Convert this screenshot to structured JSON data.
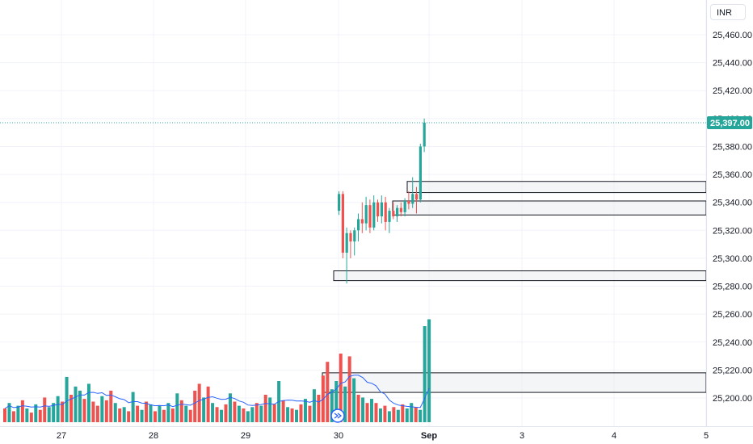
{
  "currency": "INR",
  "chart_data": {
    "type": "candlestick",
    "y_range": [
      25180,
      25470
    ],
    "y_ticks": [
      "25,460.00",
      "25,440.00",
      "25,420.00",
      "25,400.00",
      "25,380.00",
      "25,360.00",
      "25,340.00",
      "25,320.00",
      "25,300.00",
      "25,280.00",
      "25,260.00",
      "25,240.00",
      "25,220.00",
      "25,200.00"
    ],
    "x_ticks": [
      "27",
      "28",
      "29",
      "30",
      "Sep",
      "3",
      "4",
      "5"
    ],
    "last_price": 25397.0,
    "last_price_label": "25,397.00",
    "up_color": "#26a69a",
    "down_color": "#ef5350",
    "ma_color": "#2962ff",
    "candles": [
      {
        "t": 0,
        "o": 25334,
        "h": 25348,
        "l": 25331,
        "c": 25346
      },
      {
        "t": 1,
        "o": 25346,
        "h": 25348,
        "l": 25300,
        "c": 25304
      },
      {
        "t": 2,
        "o": 25304,
        "h": 25322,
        "l": 25282,
        "c": 25318
      },
      {
        "t": 3,
        "o": 25318,
        "h": 25320,
        "l": 25300,
        "c": 25312
      },
      {
        "t": 4,
        "o": 25312,
        "h": 25322,
        "l": 25302,
        "c": 25320
      },
      {
        "t": 5,
        "o": 25320,
        "h": 25332,
        "l": 25312,
        "c": 25328
      },
      {
        "t": 6,
        "o": 25328,
        "h": 25340,
        "l": 25318,
        "c": 25325
      },
      {
        "t": 7,
        "o": 25325,
        "h": 25344,
        "l": 25320,
        "c": 25338
      },
      {
        "t": 8,
        "o": 25338,
        "h": 25342,
        "l": 25318,
        "c": 25322
      },
      {
        "t": 9,
        "o": 25322,
        "h": 25345,
        "l": 25320,
        "c": 25340
      },
      {
        "t": 10,
        "o": 25340,
        "h": 25342,
        "l": 25326,
        "c": 25330
      },
      {
        "t": 11,
        "o": 25330,
        "h": 25345,
        "l": 25325,
        "c": 25340
      },
      {
        "t": 12,
        "o": 25340,
        "h": 25344,
        "l": 25320,
        "c": 25326
      },
      {
        "t": 13,
        "o": 25326,
        "h": 25336,
        "l": 25318,
        "c": 25334
      },
      {
        "t": 14,
        "o": 25334,
        "h": 25340,
        "l": 25328,
        "c": 25330
      },
      {
        "t": 15,
        "o": 25330,
        "h": 25338,
        "l": 25326,
        "c": 25336
      },
      {
        "t": 16,
        "o": 25336,
        "h": 25340,
        "l": 25330,
        "c": 25333
      },
      {
        "t": 17,
        "o": 25333,
        "h": 25343,
        "l": 25330,
        "c": 25341
      },
      {
        "t": 18,
        "o": 25341,
        "h": 25348,
        "l": 25335,
        "c": 25339
      },
      {
        "t": 19,
        "o": 25339,
        "h": 25358,
        "l": 25336,
        "c": 25346
      },
      {
        "t": 20,
        "o": 25346,
        "h": 25351,
        "l": 25332,
        "c": 25342
      },
      {
        "t": 21,
        "o": 25342,
        "h": 25382,
        "l": 25340,
        "c": 25380
      },
      {
        "t": 22,
        "o": 25380,
        "h": 25400,
        "l": 25376,
        "c": 25397
      }
    ],
    "zones": [
      {
        "top": 25355,
        "bottom": 25347
      },
      {
        "top": 25341,
        "bottom": 25331
      },
      {
        "top": 25291,
        "bottom": 25284
      },
      {
        "top": 25218,
        "bottom": 25204
      }
    ],
    "volume": [
      {
        "v": 10,
        "up": false
      },
      {
        "v": 14,
        "up": true
      },
      {
        "v": 8,
        "up": false
      },
      {
        "v": 12,
        "up": true
      },
      {
        "v": 16,
        "up": false
      },
      {
        "v": 10,
        "up": true
      },
      {
        "v": 7,
        "up": false
      },
      {
        "v": 13,
        "up": true
      },
      {
        "v": 9,
        "up": false
      },
      {
        "v": 18,
        "up": false
      },
      {
        "v": 11,
        "up": true
      },
      {
        "v": 14,
        "up": true
      },
      {
        "v": 19,
        "up": true
      },
      {
        "v": 15,
        "up": false
      },
      {
        "v": 33,
        "up": true
      },
      {
        "v": 20,
        "up": false
      },
      {
        "v": 26,
        "up": true
      },
      {
        "v": 23,
        "up": true
      },
      {
        "v": 17,
        "up": false
      },
      {
        "v": 28,
        "up": true
      },
      {
        "v": 15,
        "up": false
      },
      {
        "v": 12,
        "up": false
      },
      {
        "v": 19,
        "up": true
      },
      {
        "v": 16,
        "up": false
      },
      {
        "v": 23,
        "up": false
      },
      {
        "v": 14,
        "up": true
      },
      {
        "v": 10,
        "up": false
      },
      {
        "v": 11,
        "up": true
      },
      {
        "v": 8,
        "up": false
      },
      {
        "v": 22,
        "up": true
      },
      {
        "v": 12,
        "up": false
      },
      {
        "v": 9,
        "up": true
      },
      {
        "v": 15,
        "up": false
      },
      {
        "v": 13,
        "up": true
      },
      {
        "v": 8,
        "up": false
      },
      {
        "v": 12,
        "up": true
      },
      {
        "v": 9,
        "up": false
      },
      {
        "v": 14,
        "up": true
      },
      {
        "v": 10,
        "up": false
      },
      {
        "v": 21,
        "up": true
      },
      {
        "v": 16,
        "up": false
      },
      {
        "v": 12,
        "up": true
      },
      {
        "v": 9,
        "up": false
      },
      {
        "v": 23,
        "up": false
      },
      {
        "v": 28,
        "up": false
      },
      {
        "v": 18,
        "up": true
      },
      {
        "v": 26,
        "up": false
      },
      {
        "v": 14,
        "up": true
      },
      {
        "v": 11,
        "up": false
      },
      {
        "v": 9,
        "up": true
      },
      {
        "v": 13,
        "up": false
      },
      {
        "v": 21,
        "up": true
      },
      {
        "v": 15,
        "up": false
      },
      {
        "v": 12,
        "up": true
      },
      {
        "v": 10,
        "up": false
      },
      {
        "v": 8,
        "up": true
      },
      {
        "v": 11,
        "up": true
      },
      {
        "v": 14,
        "up": false
      },
      {
        "v": 12,
        "up": true
      },
      {
        "v": 20,
        "up": false
      },
      {
        "v": 18,
        "up": true
      },
      {
        "v": 13,
        "up": false
      },
      {
        "v": 30,
        "up": true
      },
      {
        "v": 16,
        "up": false
      },
      {
        "v": 11,
        "up": true
      },
      {
        "v": 10,
        "up": false
      },
      {
        "v": 9,
        "up": true
      },
      {
        "v": 13,
        "up": false
      },
      {
        "v": 17,
        "up": true
      },
      {
        "v": 12,
        "up": false
      },
      {
        "v": 24,
        "up": true
      },
      {
        "v": 20,
        "up": false
      },
      {
        "v": 34,
        "up": false
      },
      {
        "v": 44,
        "up": false
      },
      {
        "v": 24,
        "up": true
      },
      {
        "v": 30,
        "up": true
      },
      {
        "v": 50,
        "up": false
      },
      {
        "v": 26,
        "up": true
      },
      {
        "v": 48,
        "up": false
      },
      {
        "v": 32,
        "up": true
      },
      {
        "v": 20,
        "up": false
      },
      {
        "v": 18,
        "up": true
      },
      {
        "v": 14,
        "up": false
      },
      {
        "v": 17,
        "up": true
      },
      {
        "v": 14,
        "up": false
      },
      {
        "v": 10,
        "up": true
      },
      {
        "v": 12,
        "up": false
      },
      {
        "v": 8,
        "up": true
      },
      {
        "v": 11,
        "up": false
      },
      {
        "v": 9,
        "up": true
      },
      {
        "v": 13,
        "up": false
      },
      {
        "v": 10,
        "up": true
      },
      {
        "v": 14,
        "up": true
      },
      {
        "v": 11,
        "up": false
      },
      {
        "v": 9,
        "up": true
      },
      {
        "v": 70,
        "up": true
      },
      {
        "v": 75,
        "up": true
      }
    ]
  }
}
